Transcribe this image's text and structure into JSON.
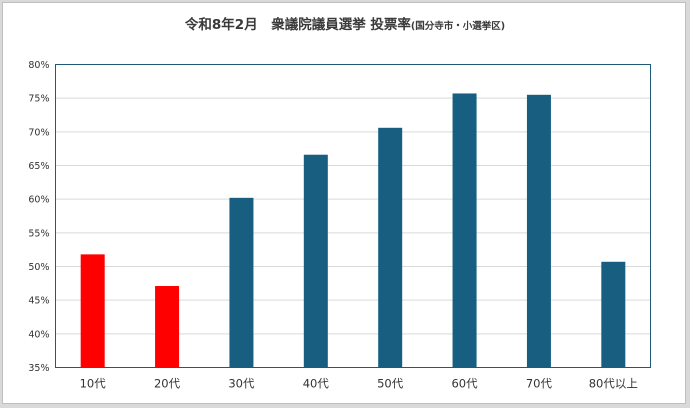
{
  "chart_data": {
    "type": "bar",
    "title": "令和8年2月　衆議院議員選挙 投票率",
    "subtitle": "(国分寺市・小選挙区)",
    "categories": [
      "10代",
      "20代",
      "30代",
      "40代",
      "50代",
      "60代",
      "70代",
      "80代以上"
    ],
    "values": [
      51.8,
      47.1,
      60.2,
      66.6,
      70.6,
      75.7,
      75.5,
      50.7
    ],
    "ylim": [
      35,
      80
    ],
    "yticks": [
      "35%",
      "40%",
      "45%",
      "50%",
      "55%",
      "60%",
      "65%",
      "70%",
      "75%",
      "80%"
    ],
    "grid": true,
    "colors": {
      "highlight": "#ff0000",
      "default": "#175e80",
      "highlighted_categories": [
        "10代",
        "20代"
      ]
    }
  }
}
